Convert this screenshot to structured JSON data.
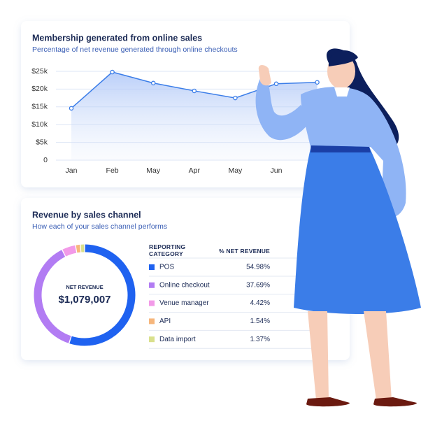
{
  "chart_data": [
    {
      "type": "line",
      "title": "Membership generated from online sales",
      "subtitle": "Percentage of net revenue generated through online checkouts",
      "categories": [
        "Jan",
        "Feb",
        "May",
        "Apr",
        "May",
        "Jun",
        null
      ],
      "values": [
        14600,
        24800,
        21700,
        19500,
        17500,
        21500,
        21900
      ],
      "color": "#3b7de8",
      "ylim": [
        0,
        25000
      ],
      "yticks": [
        0,
        {
          "value": 5000,
          "label": "$5k"
        },
        {
          "value": 10000,
          "label": "$10k"
        },
        {
          "value": 15000,
          "label": "$15k"
        },
        {
          "value": 20000,
          "label": "$20k"
        },
        {
          "value": 25000,
          "label": "$25k"
        }
      ],
      "grid": true
    },
    {
      "type": "pie",
      "title": "Revenue by sales channel",
      "subtitle": "How each of your sales channel performs",
      "center_label": "NET REVENUE",
      "center_value": "$1,079,007",
      "table_headers": [
        "REPORTING CATEGORY",
        "% NET REVENUE"
      ],
      "categories": [
        "POS",
        "Online checkout",
        "Venue manager",
        "API",
        "Data import"
      ],
      "values": [
        54.98,
        37.69,
        4.42,
        1.54,
        1.37
      ],
      "value_labels": [
        "54.98%",
        "37.69%",
        "4.42%",
        "1.54%",
        "1.37%"
      ],
      "colors": [
        "#1f62f0",
        "#b27cf3",
        "#f29ae8",
        "#f6b67c",
        "#d9e08c"
      ]
    }
  ]
}
